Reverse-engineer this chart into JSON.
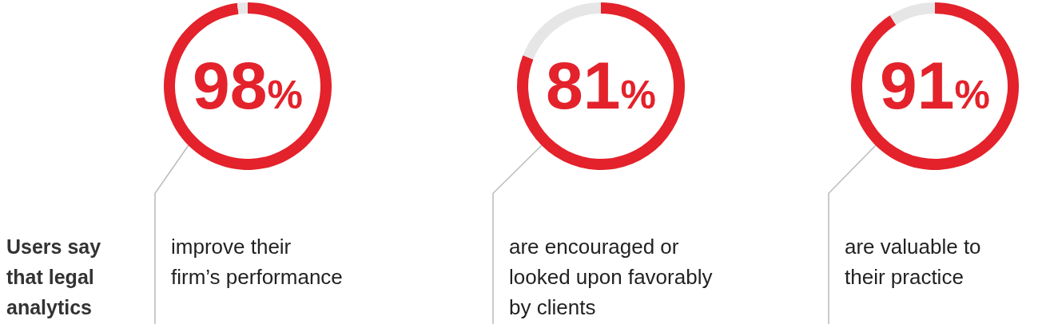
{
  "chart_data": [
    {
      "type": "other",
      "annotations": [
        "Users say",
        "that legal",
        "analytics"
      ]
    },
    {
      "type": "donut",
      "categories": [
        null,
        null
      ],
      "values": [
        98,
        2
      ],
      "colors": [
        "#e3222b",
        "#e6e6e6"
      ],
      "value_labels": [
        "98%",
        null
      ],
      "annotations": [
        "improve their",
        "firm’s performance"
      ]
    },
    {
      "type": "donut",
      "categories": [
        null,
        null
      ],
      "values": [
        81,
        19
      ],
      "colors": [
        "#e3222b",
        "#e6e6e6"
      ],
      "value_labels": [
        "81%",
        null
      ],
      "annotations": [
        "are encouraged or",
        "looked upon favorably",
        "by clients"
      ]
    },
    {
      "type": "donut",
      "categories": [
        null,
        null
      ],
      "values": [
        91,
        9
      ],
      "colors": [
        "#e3222b",
        "#e6e6e6"
      ],
      "value_labels": [
        "91%",
        null
      ],
      "annotations": [
        "are valuable to",
        "their practice"
      ]
    }
  ]
}
